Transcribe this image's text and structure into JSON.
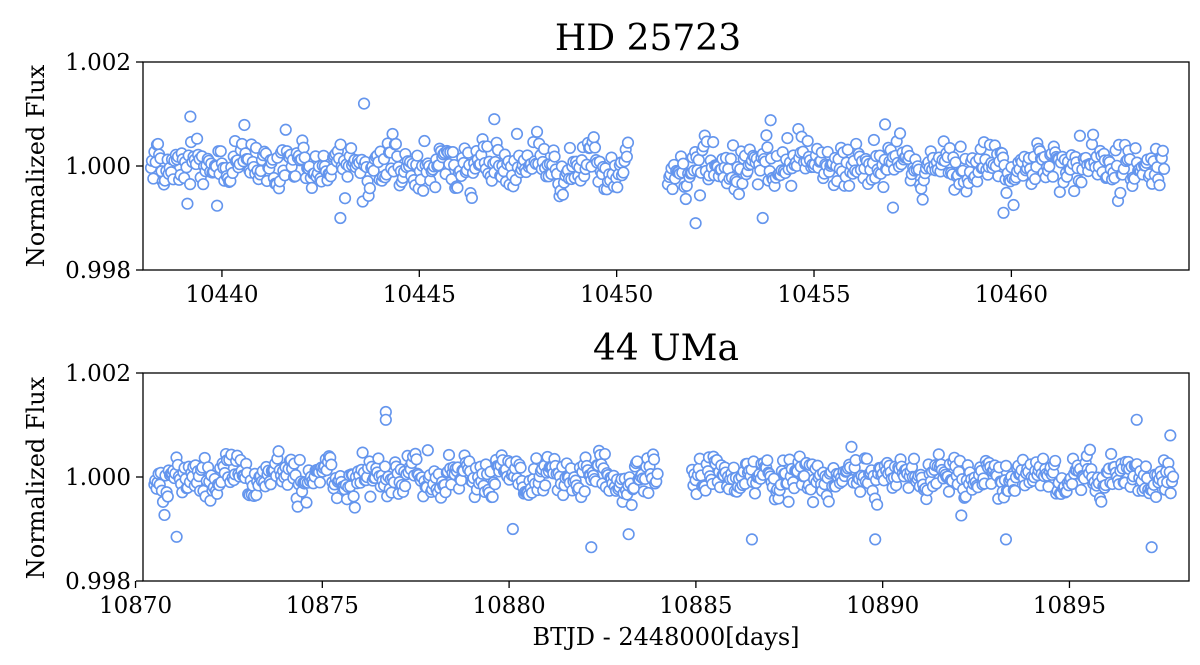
{
  "chart_data": [
    {
      "type": "scatter",
      "title": "HD 25723",
      "xlabel": "",
      "ylabel": "Normalized Flux",
      "xlim": [
        10438.0,
        10464.5
      ],
      "ylim": [
        0.998,
        1.002
      ],
      "x_ticks": [
        10440,
        10445,
        10450,
        10455,
        10460
      ],
      "x_tick_labels": [
        "10440",
        "10445",
        "10450",
        "10455",
        "10460"
      ],
      "y_ticks": [
        0.998,
        1.0,
        1.002
      ],
      "y_tick_labels": [
        "0.998",
        "1.000",
        "1.002"
      ],
      "grid": false,
      "marker": "open-circle",
      "color": "#6495ed",
      "segments": [
        {
          "x_start": 10438.2,
          "x_end": 10450.3
        },
        {
          "x_start": 10451.3,
          "x_end": 10463.9
        }
      ],
      "noise_std": 0.00022,
      "notable_points": [
        {
          "x": 10439.2,
          "y": 1.00095
        },
        {
          "x": 10443.6,
          "y": 1.0012
        },
        {
          "x": 10446.9,
          "y": 1.0009
        },
        {
          "x": 10443.0,
          "y": 0.999
        },
        {
          "x": 10452.0,
          "y": 0.9989
        },
        {
          "x": 10453.9,
          "y": 1.00088
        },
        {
          "x": 10453.7,
          "y": 0.999
        },
        {
          "x": 10456.8,
          "y": 1.0008
        },
        {
          "x": 10459.8,
          "y": 0.9991
        },
        {
          "x": 10457.0,
          "y": 0.9992
        }
      ]
    },
    {
      "type": "scatter",
      "title": "44 UMa",
      "xlabel": "BTJD - 2448000[days]",
      "ylabel": "Normalized Flux",
      "xlim": [
        10870.2,
        10898.2
      ],
      "ylim": [
        0.998,
        1.002
      ],
      "x_ticks": [
        10870,
        10875,
        10880,
        10885,
        10890,
        10895
      ],
      "x_tick_labels": [
        "10870",
        "10875",
        "10880",
        "10885",
        "10890",
        "10895"
      ],
      "y_ticks": [
        0.998,
        1.0,
        1.002
      ],
      "y_tick_labels": [
        "0.998",
        "1.000",
        "1.002"
      ],
      "grid": false,
      "marker": "open-circle",
      "color": "#6495ed",
      "segments": [
        {
          "x_start": 10870.5,
          "x_end": 10884.0
        },
        {
          "x_start": 10884.9,
          "x_end": 10897.8
        }
      ],
      "noise_std": 0.00018,
      "notable_points": [
        {
          "x": 10876.7,
          "y": 1.00125
        },
        {
          "x": 10876.7,
          "y": 1.0011
        },
        {
          "x": 10896.8,
          "y": 1.0011
        },
        {
          "x": 10897.7,
          "y": 1.0008
        },
        {
          "x": 10871.1,
          "y": 0.99885
        },
        {
          "x": 10882.2,
          "y": 0.99865
        },
        {
          "x": 10886.5,
          "y": 0.9988
        },
        {
          "x": 10889.8,
          "y": 0.9988
        },
        {
          "x": 10893.3,
          "y": 0.9988
        },
        {
          "x": 10897.2,
          "y": 0.99865
        },
        {
          "x": 10880.1,
          "y": 0.999
        },
        {
          "x": 10883.2,
          "y": 0.9989
        }
      ]
    }
  ]
}
